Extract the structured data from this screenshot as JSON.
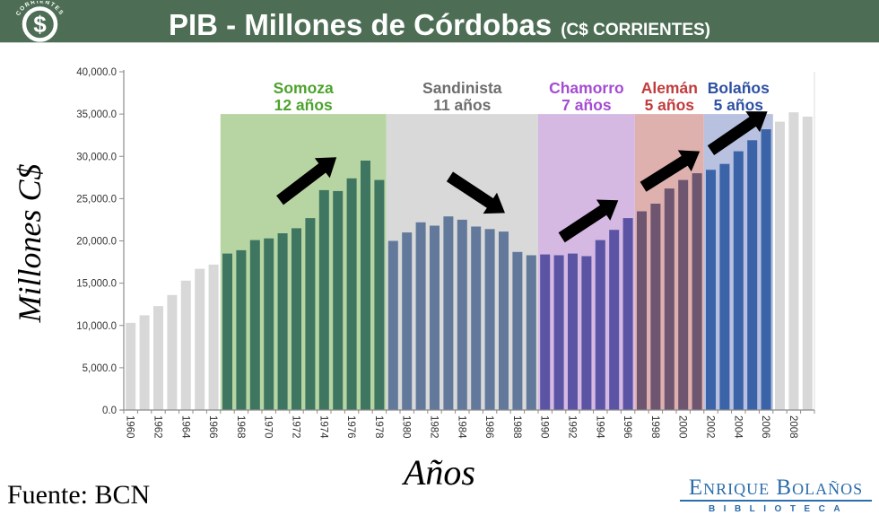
{
  "header": {
    "title": "PIB - Millones de Córdobas",
    "subtitle": "(C$ CORRIENTES)",
    "coin_text": "CORRIENTES",
    "bg_color": "#4d6e55"
  },
  "footer": {
    "source": "Fuente: BCN",
    "logo_name": "Enrique Bolaños",
    "logo_sub": "BIBLIOTECA",
    "logo_color": "#2b6cab"
  },
  "chart_data": {
    "type": "bar",
    "title": "PIB - Millones de Córdobas (C$ CORRIENTES)",
    "xlabel": "Años",
    "ylabel": "Millones C$",
    "ylim": [
      0,
      40000
    ],
    "ytick_labels": [
      "0.0",
      "5,000.0",
      "10,000.0",
      "15,000.0",
      "20,000.0",
      "25,000.0",
      "30,000.0",
      "35,000.0",
      "40,000.0"
    ],
    "xtick_every": 2,
    "grid": false,
    "legend": "none",
    "years": [
      1960,
      1961,
      1962,
      1963,
      1964,
      1965,
      1966,
      1967,
      1968,
      1969,
      1970,
      1971,
      1972,
      1973,
      1974,
      1975,
      1976,
      1977,
      1978,
      1979,
      1980,
      1981,
      1982,
      1983,
      1984,
      1985,
      1986,
      1987,
      1988,
      1989,
      1990,
      1991,
      1992,
      1993,
      1994,
      1995,
      1996,
      1997,
      1998,
      1999,
      2000,
      2001,
      2002,
      2003,
      2004,
      2005,
      2006,
      2007,
      2008,
      2009
    ],
    "values": [
      10300,
      11200,
      12300,
      13600,
      15300,
      16700,
      17200,
      18500,
      18900,
      20100,
      20300,
      20900,
      21500,
      22700,
      26000,
      25900,
      27400,
      29500,
      27200,
      20000,
      21000,
      22200,
      21800,
      22900,
      22500,
      21700,
      21400,
      21100,
      18700,
      18300,
      18400,
      18300,
      18500,
      18200,
      20100,
      21300,
      22700,
      23500,
      24400,
      26200,
      27200,
      28000,
      28400,
      29100,
      30600,
      31900,
      33200,
      34100,
      35200,
      34700
    ],
    "band_top_value": 35000,
    "eras": [
      {
        "label": "",
        "sublabel": "",
        "start_year": 1960,
        "end_year": 1966,
        "bar_color": "#d8d8d8",
        "band_color": "",
        "label_color": ""
      },
      {
        "label": "Somoza",
        "sublabel": "12 años",
        "start_year": 1967,
        "end_year": 1978,
        "bar_color": "#3f7661",
        "band_color": "#b7d5a3",
        "label_color": "#4da32d"
      },
      {
        "label": "Sandinista",
        "sublabel": "11 años",
        "start_year": 1979,
        "end_year": 1989,
        "bar_color": "#63799b",
        "band_color": "#d9d9d9",
        "label_color": "#6e6e6e"
      },
      {
        "label": "Chamorro",
        "sublabel": "7 años",
        "start_year": 1990,
        "end_year": 1996,
        "bar_color": "#5b54a4",
        "band_color": "#d5b9e3",
        "label_color": "#a44cd3"
      },
      {
        "label": "Alemán",
        "sublabel": "5 años",
        "start_year": 1997,
        "end_year": 2001,
        "bar_color": "#6e5570",
        "band_color": "#dfb1ae",
        "label_color": "#c23c3c"
      },
      {
        "label": "Bolaños",
        "sublabel": "5 años",
        "start_year": 2002,
        "end_year": 2006,
        "bar_color": "#3b63a7",
        "band_color": "#b8c1e0",
        "label_color": "#2d51a3"
      },
      {
        "label": "",
        "sublabel": "",
        "start_year": 2007,
        "end_year": 2009,
        "bar_color": "#d8d8d8",
        "band_color": "",
        "label_color": ""
      }
    ],
    "arrows": [
      {
        "direction": "up-right",
        "from": {
          "year": 1970.8,
          "value": 24800
        },
        "to": {
          "year": 1974.9,
          "value": 29900
        }
      },
      {
        "direction": "down-right",
        "from": {
          "year": 1983.1,
          "value": 27600
        },
        "to": {
          "year": 1987.1,
          "value": 23300
        }
      },
      {
        "direction": "up-right",
        "from": {
          "year": 1991.2,
          "value": 20400
        },
        "to": {
          "year": 1995.3,
          "value": 24800
        }
      },
      {
        "direction": "up-right",
        "from": {
          "year": 1997.1,
          "value": 26400
        },
        "to": {
          "year": 2001.2,
          "value": 30600
        }
      },
      {
        "direction": "up-right",
        "from": {
          "year": 2002.0,
          "value": 30700
        },
        "to": {
          "year": 2006.1,
          "value": 35300
        }
      }
    ]
  }
}
